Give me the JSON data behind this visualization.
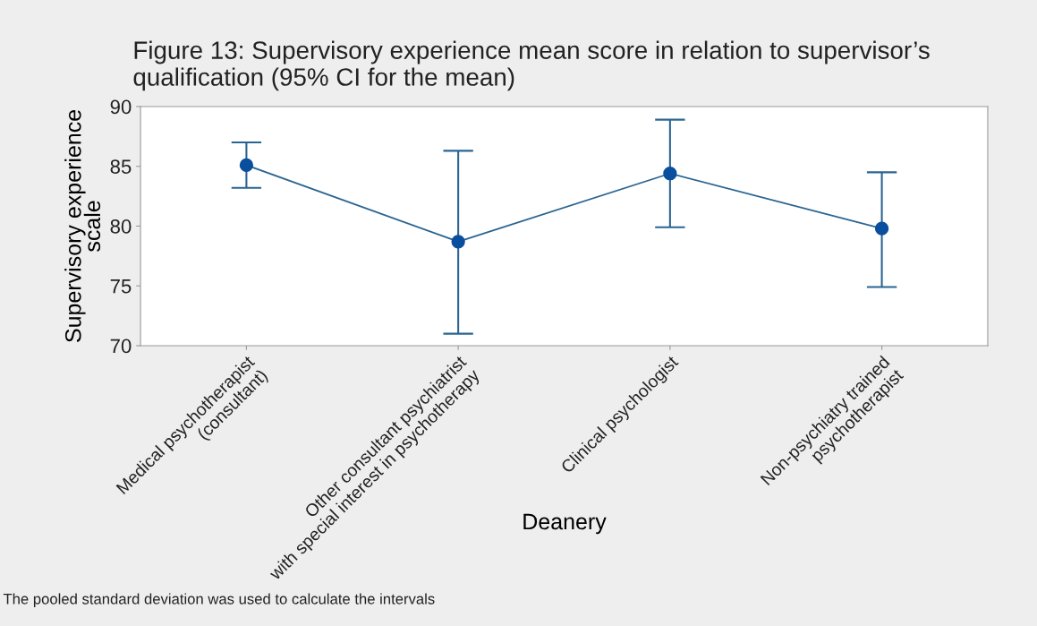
{
  "chart_data": {
    "type": "line",
    "title": "Figure 13: Supervisory experience mean score in relation to supervisor’s qualification (95% CI for the mean)",
    "xlabel": "Deanery",
    "ylabel": "Supervisory experience\nscale",
    "categories": [
      "Medical psychotherapist\n(consultant)",
      "Other consultant psychiatrist\nwith special interest in psychotherapy",
      "Clinical psychologist",
      "Non-psychiatry trained\npsychotherapist"
    ],
    "series": [
      {
        "color": "#0a4f9e",
        "values": [
          85.1,
          78.7,
          84.4,
          79.8
        ],
        "errors": [
          [
            83.2,
            87.0
          ],
          [
            71.0,
            86.3
          ],
          [
            79.9,
            88.9
          ],
          [
            74.9,
            84.5
          ]
        ]
      }
    ],
    "ylim": [
      70,
      90
    ],
    "yticks": [
      70,
      75,
      80,
      85,
      90
    ],
    "marker": "circle",
    "line_style": "solid",
    "grid": false,
    "legend": false,
    "annotations": [
      "The pooled standard deviation was used to calculate the intervals"
    ]
  }
}
